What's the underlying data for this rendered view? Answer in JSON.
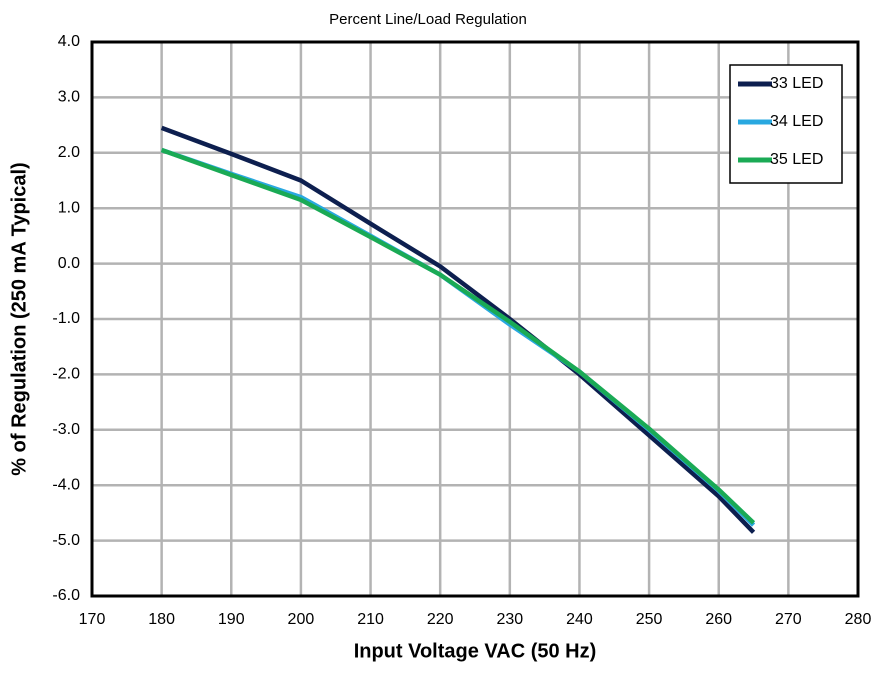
{
  "chart_data": {
    "type": "line",
    "title": "Percent Line/Load Regulation",
    "xlabel": "Input Voltage VAC (50 Hz)",
    "ylabel": "% of Regulation (250 mA Typical)",
    "x": [
      180,
      190,
      200,
      210,
      220,
      230,
      240,
      250,
      260,
      265
    ],
    "series": [
      {
        "name": "33 LED",
        "color": "#0d1f4f",
        "values": [
          2.45,
          1.98,
          1.5,
          0.72,
          -0.05,
          -1.0,
          -2.0,
          -3.1,
          -4.2,
          -4.85
        ]
      },
      {
        "name": "34 LED",
        "color": "#29a8e0",
        "values": [
          2.05,
          1.62,
          1.2,
          0.5,
          -0.2,
          -1.1,
          -1.95,
          -3.0,
          -4.1,
          -4.72
        ]
      },
      {
        "name": "35 LED",
        "color": "#1aaa55",
        "values": [
          2.05,
          1.6,
          1.15,
          0.48,
          -0.2,
          -1.05,
          -1.95,
          -2.98,
          -4.08,
          -4.68
        ]
      }
    ],
    "xlim": [
      170,
      280
    ],
    "xticks": [
      170,
      180,
      190,
      200,
      210,
      220,
      230,
      240,
      250,
      260,
      270,
      280
    ],
    "ylim": [
      -6,
      4
    ],
    "yticks": [
      {
        "value": -6,
        "label": "-6.0"
      },
      {
        "value": -5,
        "label": "-5.0"
      },
      {
        "value": -4,
        "label": "-4.0"
      },
      {
        "value": -3,
        "label": "-3.0"
      },
      {
        "value": -2,
        "label": "-2.0"
      },
      {
        "value": -1,
        "label": "-1.0"
      },
      {
        "value": 0,
        "label": "0.0"
      },
      {
        "value": 1,
        "label": "1.0"
      },
      {
        "value": 2,
        "label": "2.0"
      },
      {
        "value": 3,
        "label": "3.0"
      },
      {
        "value": 4,
        "label": "4.0"
      }
    ],
    "grid": true,
    "legend": "upper right"
  }
}
